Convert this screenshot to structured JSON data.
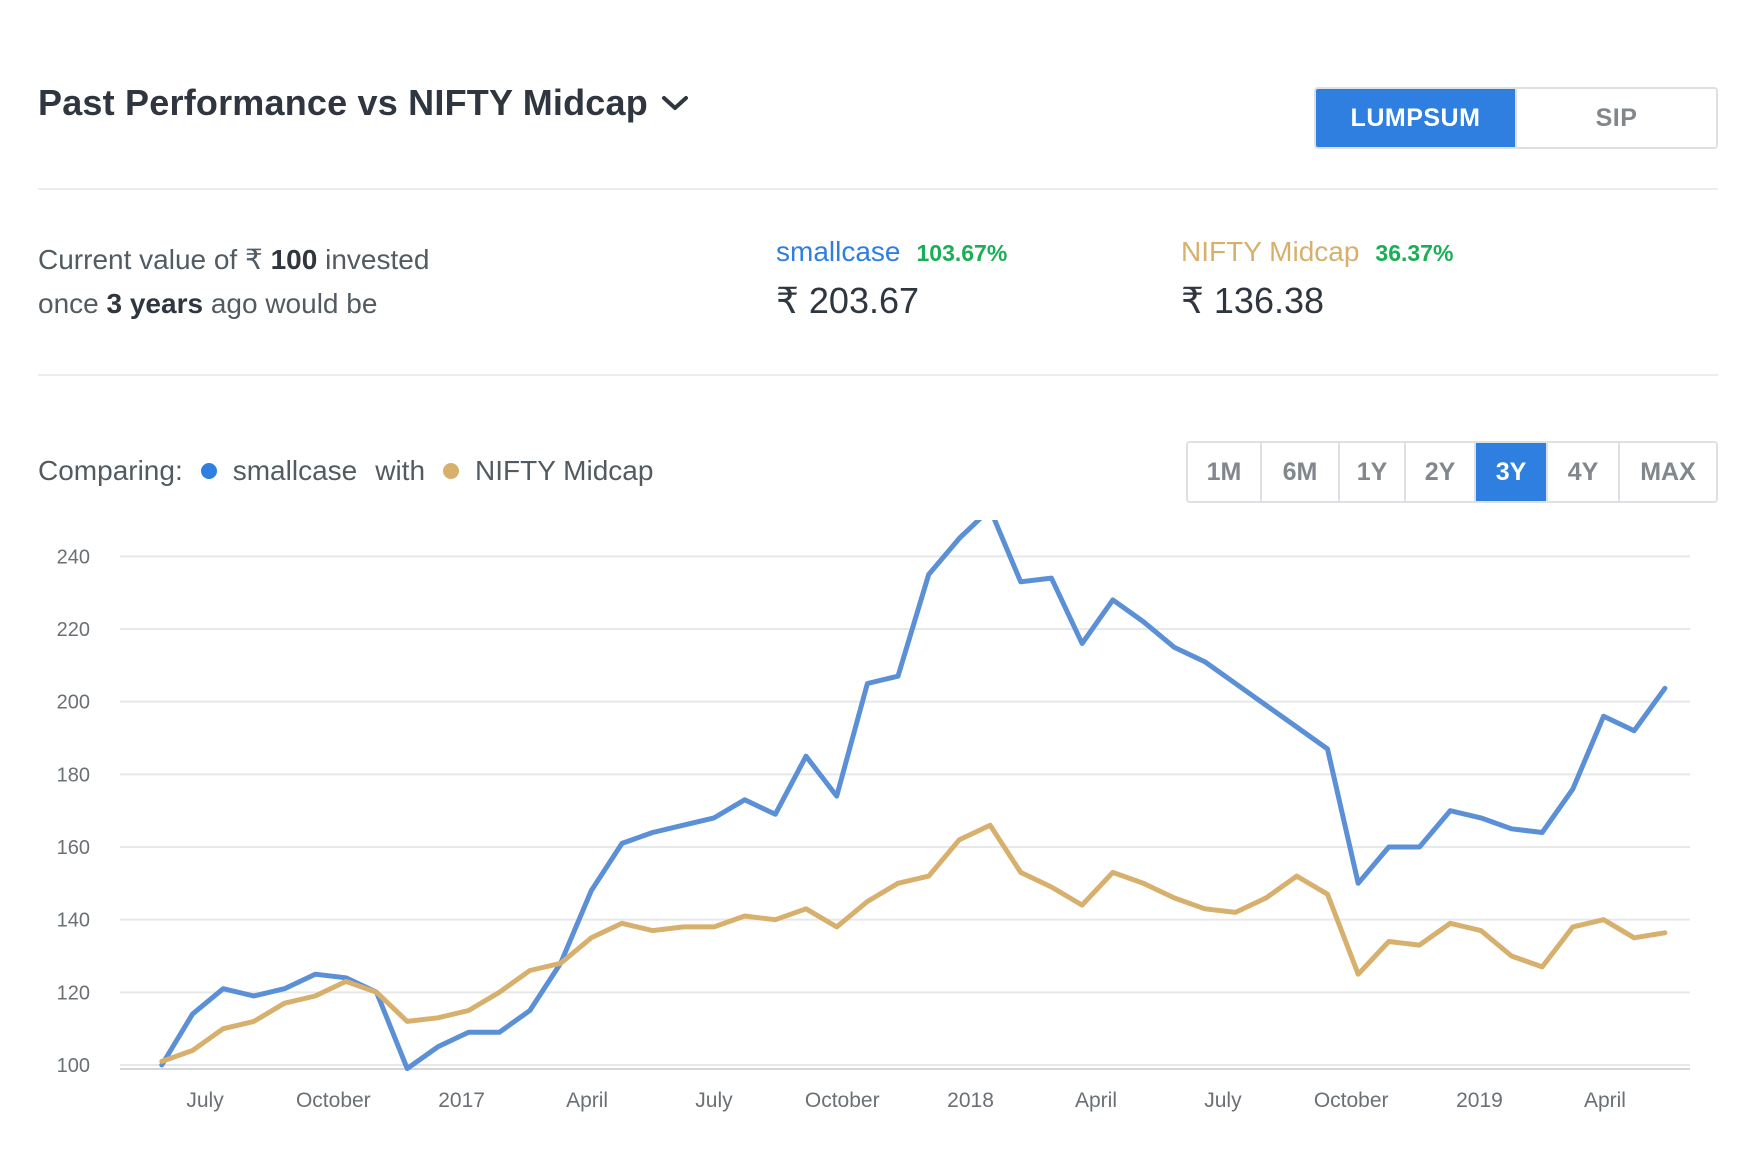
{
  "header": {
    "title": "Past Performance vs NIFTY Midcap",
    "chevron_icon": "chevron-down-icon",
    "modes": [
      {
        "label": "LUMPSUM",
        "active": true
      },
      {
        "label": "SIP",
        "active": false
      }
    ]
  },
  "summary": {
    "line1_prefix": "Current value of ",
    "currency": "₹",
    "amount": "100",
    "line1_suffix": " invested",
    "line2_prefix": "once ",
    "period": "3 years",
    "line2_suffix": " ago would be",
    "smallcase": {
      "name": "smallcase",
      "pct": "103.67%",
      "value": "₹ 203.67"
    },
    "benchmark": {
      "name": "NIFTY Midcap",
      "pct": "36.37%",
      "value": "₹ 136.38"
    }
  },
  "comparing": {
    "label": "Comparing:",
    "series_a": "smallcase",
    "with": "with",
    "series_b": "NIFTY Midcap"
  },
  "ranges": [
    {
      "label": "1M",
      "active": false
    },
    {
      "label": "6M",
      "active": false
    },
    {
      "label": "1Y",
      "active": false
    },
    {
      "label": "2Y",
      "active": false
    },
    {
      "label": "3Y",
      "active": true
    },
    {
      "label": "4Y",
      "active": false
    },
    {
      "label": "MAX",
      "active": false
    }
  ],
  "colors": {
    "accent": "#2f7fe0",
    "smallcase": "#5b8fd6",
    "benchmark": "#d8b06e",
    "positive": "#19af55",
    "grid": "#e6e8ea"
  },
  "chart_data": {
    "type": "line",
    "x_range": [
      "2016-05-01",
      "2019-06-01"
    ],
    "ylim": [
      100,
      250
    ],
    "y_ticks": [
      100,
      120,
      140,
      160,
      180,
      200,
      220,
      240
    ],
    "x_ticks": [
      {
        "label": "July",
        "date": "2016-07-01"
      },
      {
        "label": "October",
        "date": "2016-10-01"
      },
      {
        "label": "2017",
        "date": "2017-01-01"
      },
      {
        "label": "April",
        "date": "2017-04-01"
      },
      {
        "label": "July",
        "date": "2017-07-01"
      },
      {
        "label": "October",
        "date": "2017-10-01"
      },
      {
        "label": "2018",
        "date": "2018-01-01"
      },
      {
        "label": "April",
        "date": "2018-04-01"
      },
      {
        "label": "July",
        "date": "2018-07-01"
      },
      {
        "label": "October",
        "date": "2018-10-01"
      },
      {
        "label": "2019",
        "date": "2019-01-01"
      },
      {
        "label": "April",
        "date": "2019-04-01"
      }
    ],
    "grid": true,
    "series": [
      {
        "name": "smallcase",
        "color": "#5b8fd6",
        "points": [
          [
            "2016-05-31",
            100
          ],
          [
            "2016-06-22",
            114
          ],
          [
            "2016-07-14",
            121
          ],
          [
            "2016-08-05",
            119
          ],
          [
            "2016-08-27",
            121
          ],
          [
            "2016-09-18",
            125
          ],
          [
            "2016-10-10",
            124
          ],
          [
            "2016-11-01",
            120
          ],
          [
            "2016-11-23",
            99
          ],
          [
            "2016-12-15",
            105
          ],
          [
            "2017-01-06",
            109
          ],
          [
            "2017-01-28",
            109
          ],
          [
            "2017-02-19",
            115
          ],
          [
            "2017-03-13",
            128
          ],
          [
            "2017-04-04",
            148
          ],
          [
            "2017-04-26",
            161
          ],
          [
            "2017-05-18",
            164
          ],
          [
            "2017-06-09",
            166
          ],
          [
            "2017-07-01",
            168
          ],
          [
            "2017-07-23",
            173
          ],
          [
            "2017-08-14",
            169
          ],
          [
            "2017-09-05",
            185
          ],
          [
            "2017-09-27",
            174
          ],
          [
            "2017-10-19",
            205
          ],
          [
            "2017-11-10",
            207
          ],
          [
            "2017-12-02",
            235
          ],
          [
            "2017-12-24",
            245
          ],
          [
            "2018-01-15",
            253
          ],
          [
            "2018-02-06",
            233
          ],
          [
            "2018-02-28",
            234
          ],
          [
            "2018-03-22",
            216
          ],
          [
            "2018-04-13",
            228
          ],
          [
            "2018-05-05",
            222
          ],
          [
            "2018-05-27",
            215
          ],
          [
            "2018-06-18",
            211
          ],
          [
            "2018-07-10",
            205
          ],
          [
            "2018-08-01",
            199
          ],
          [
            "2018-08-23",
            193
          ],
          [
            "2018-09-14",
            187
          ],
          [
            "2018-10-06",
            150
          ],
          [
            "2018-10-28",
            160
          ],
          [
            "2018-11-19",
            160
          ],
          [
            "2018-12-11",
            170
          ],
          [
            "2019-01-02",
            168
          ],
          [
            "2019-01-24",
            165
          ],
          [
            "2019-02-15",
            164
          ],
          [
            "2019-03-09",
            176
          ],
          [
            "2019-03-31",
            196
          ],
          [
            "2019-04-22",
            192
          ],
          [
            "2019-05-14",
            203.67
          ]
        ]
      },
      {
        "name": "NIFTY Midcap",
        "color": "#d8b06e",
        "points": [
          [
            "2016-05-31",
            101
          ],
          [
            "2016-06-22",
            104
          ],
          [
            "2016-07-14",
            110
          ],
          [
            "2016-08-05",
            112
          ],
          [
            "2016-08-27",
            117
          ],
          [
            "2016-09-18",
            119
          ],
          [
            "2016-10-10",
            123
          ],
          [
            "2016-11-01",
            120
          ],
          [
            "2016-11-23",
            112
          ],
          [
            "2016-12-15",
            113
          ],
          [
            "2017-01-06",
            115
          ],
          [
            "2017-01-28",
            120
          ],
          [
            "2017-02-19",
            126
          ],
          [
            "2017-03-13",
            128
          ],
          [
            "2017-04-04",
            135
          ],
          [
            "2017-04-26",
            139
          ],
          [
            "2017-05-18",
            137
          ],
          [
            "2017-06-09",
            138
          ],
          [
            "2017-07-01",
            138
          ],
          [
            "2017-07-23",
            141
          ],
          [
            "2017-08-14",
            140
          ],
          [
            "2017-09-05",
            143
          ],
          [
            "2017-09-27",
            138
          ],
          [
            "2017-10-19",
            145
          ],
          [
            "2017-11-10",
            150
          ],
          [
            "2017-12-02",
            152
          ],
          [
            "2017-12-24",
            162
          ],
          [
            "2018-01-15",
            166
          ],
          [
            "2018-02-06",
            153
          ],
          [
            "2018-02-28",
            149
          ],
          [
            "2018-03-22",
            144
          ],
          [
            "2018-04-13",
            153
          ],
          [
            "2018-05-05",
            150
          ],
          [
            "2018-05-27",
            146
          ],
          [
            "2018-06-18",
            143
          ],
          [
            "2018-07-10",
            142
          ],
          [
            "2018-08-01",
            146
          ],
          [
            "2018-08-23",
            152
          ],
          [
            "2018-09-14",
            147
          ],
          [
            "2018-10-06",
            125
          ],
          [
            "2018-10-28",
            134
          ],
          [
            "2018-11-19",
            133
          ],
          [
            "2018-12-11",
            139
          ],
          [
            "2019-01-02",
            137
          ],
          [
            "2019-01-24",
            130
          ],
          [
            "2019-02-15",
            127
          ],
          [
            "2019-03-09",
            138
          ],
          [
            "2019-03-31",
            140
          ],
          [
            "2019-04-22",
            135
          ],
          [
            "2019-05-14",
            136.38
          ]
        ]
      }
    ]
  }
}
